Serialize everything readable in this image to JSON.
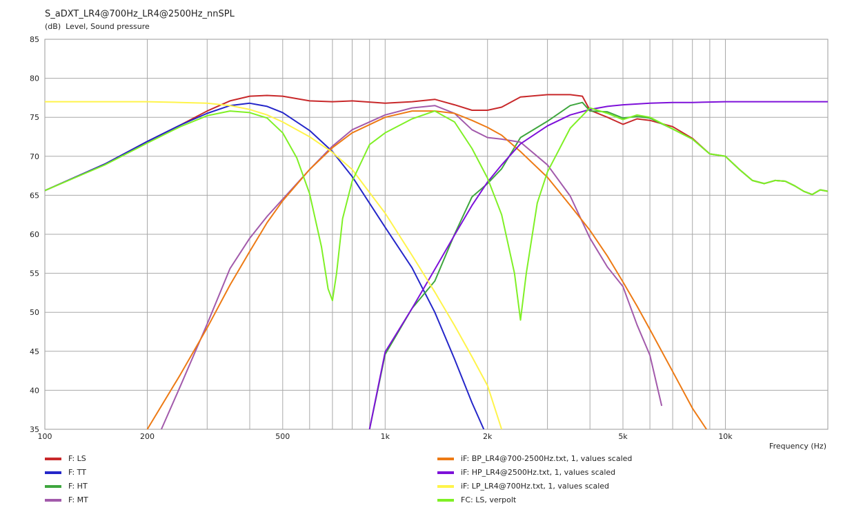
{
  "chart_data": {
    "type": "line",
    "title": "S_aDXT_LR4@700Hz_LR4@2500Hz_nnSPL",
    "ylabel_unit": "(dB)",
    "ylabel": "Level, Sound pressure",
    "xlabel": "Frequency  (Hz)",
    "x_scale": "log",
    "xlim": [
      100,
      20000
    ],
    "ylim": [
      35,
      85
    ],
    "grid": true,
    "legend_position": "bottom",
    "x_ticks": [
      {
        "value": 100,
        "label": "100"
      },
      {
        "value": 200,
        "label": "200"
      },
      {
        "value": 500,
        "label": "500"
      },
      {
        "value": 1000,
        "label": "1k"
      },
      {
        "value": 2000,
        "label": "2k"
      },
      {
        "value": 5000,
        "label": "5k"
      },
      {
        "value": 10000,
        "label": "10k"
      }
    ],
    "y_ticks": [
      35,
      40,
      45,
      50,
      55,
      60,
      65,
      70,
      75,
      80,
      85
    ],
    "series": [
      {
        "name": "F: LS",
        "color": "#c8282a",
        "x": [
          100,
          150,
          200,
          250,
          300,
          350,
          400,
          450,
          500,
          600,
          700,
          800,
          1000,
          1200,
          1400,
          1600,
          1800,
          2000,
          2200,
          2500,
          3000,
          3500,
          3800,
          4000,
          4500,
          5000,
          5500,
          6000,
          7000,
          8000,
          9000,
          10000,
          11000,
          12000,
          13000,
          14000,
          15000,
          16000,
          17000,
          18000,
          19000,
          20000
        ],
        "y": [
          65.6,
          69.0,
          71.9,
          74.0,
          75.8,
          77.1,
          77.7,
          77.8,
          77.7,
          77.1,
          77.0,
          77.1,
          76.8,
          77.0,
          77.3,
          76.6,
          75.9,
          75.9,
          76.3,
          77.6,
          77.9,
          77.9,
          77.7,
          75.9,
          75.0,
          74.1,
          74.8,
          74.6,
          73.8,
          72.3,
          70.3,
          70.0,
          68.3,
          66.9,
          66.5,
          66.9,
          66.8,
          66.2,
          65.5,
          65.1,
          65.7,
          65.5
        ]
      },
      {
        "name": "F: TT",
        "color": "#2426c9",
        "x": [
          100,
          150,
          200,
          250,
          300,
          350,
          400,
          450,
          500,
          600,
          700,
          800,
          1000,
          1200,
          1400,
          1600,
          1800,
          1950
        ],
        "y": [
          65.6,
          69.0,
          71.9,
          74.0,
          75.5,
          76.5,
          76.8,
          76.4,
          75.6,
          73.3,
          70.6,
          67.4,
          60.9,
          55.7,
          50.0,
          44.0,
          38.4,
          35.0
        ]
      },
      {
        "name": "F: HT",
        "color": "#3ea63e",
        "x": [
          900,
          1000,
          1200,
          1400,
          1600,
          1800,
          2000,
          2200,
          2500,
          3000,
          3500,
          3800,
          4000,
          4500,
          5000,
          5500,
          6000,
          7000,
          8000,
          9000,
          10000,
          11000,
          12000,
          13000,
          14000,
          15000,
          16000,
          17000,
          18000,
          19000,
          20000
        ],
        "y": [
          35.0,
          44.6,
          50.5,
          54.0,
          60.0,
          64.8,
          66.5,
          68.4,
          72.4,
          74.5,
          76.5,
          76.9,
          75.8,
          75.7,
          74.9,
          75.1,
          74.9,
          73.5,
          72.2,
          70.3,
          70.0,
          68.3,
          66.9,
          66.5,
          66.9,
          66.8,
          66.2,
          65.5,
          65.1,
          65.7,
          65.5
        ]
      },
      {
        "name": "F: MT",
        "color": "#a25aab",
        "x": [
          220,
          250,
          300,
          350,
          400,
          450,
          500,
          600,
          700,
          800,
          1000,
          1200,
          1400,
          1600,
          1800,
          2000,
          2200,
          2500,
          3000,
          3500,
          4000,
          4500,
          5000,
          5500,
          6000,
          6500
        ],
        "y": [
          35.0,
          40.5,
          48.5,
          55.6,
          59.5,
          62.3,
          64.5,
          68.3,
          71.3,
          73.4,
          75.3,
          76.2,
          76.5,
          75.5,
          73.4,
          72.4,
          72.2,
          71.8,
          68.9,
          64.9,
          59.5,
          55.8,
          53.3,
          48.4,
          44.5,
          38.0
        ]
      },
      {
        "name": "iF: BP_LR4@700-2500Hz.txt, 1, values scaled",
        "color": "#ed7a14",
        "x": [
          200,
          250,
          300,
          350,
          400,
          450,
          500,
          600,
          700,
          800,
          1000,
          1200,
          1400,
          1600,
          1800,
          2000,
          2200,
          2500,
          3000,
          3500,
          4000,
          4500,
          5000,
          5500,
          6000,
          7000,
          8000,
          8800
        ],
        "y": [
          35.0,
          42.0,
          48.0,
          53.5,
          57.8,
          61.5,
          64.3,
          68.3,
          71.1,
          73.0,
          75.0,
          75.8,
          75.8,
          75.5,
          74.6,
          73.7,
          72.7,
          70.6,
          67.3,
          63.7,
          60.5,
          57.2,
          53.9,
          50.8,
          47.8,
          42.4,
          37.7,
          35.0
        ]
      },
      {
        "name": "iF: HP_LR4@2500Hz.txt, 1, values scaled",
        "color": "#7d10d9",
        "x": [
          900,
          1000,
          1200,
          1400,
          1600,
          1800,
          2000,
          2200,
          2500,
          3000,
          3500,
          4000,
          4500,
          5000,
          6000,
          7000,
          8000,
          10000,
          12000,
          15000,
          20000
        ],
        "y": [
          35.0,
          44.9,
          50.5,
          55.5,
          59.9,
          63.7,
          66.7,
          68.9,
          71.6,
          73.9,
          75.3,
          76.0,
          76.4,
          76.6,
          76.8,
          76.9,
          76.9,
          77.0,
          77.0,
          77.0,
          77.0
        ]
      },
      {
        "name": "iF: LP_LR4@700Hz.txt, 1, values scaled",
        "color": "#fff44a",
        "x": [
          100,
          150,
          200,
          250,
          300,
          350,
          400,
          450,
          500,
          600,
          700,
          800,
          1000,
          1200,
          1400,
          1600,
          1800,
          2000,
          2200
        ],
        "y": [
          77.0,
          77.0,
          77.0,
          76.9,
          76.8,
          76.5,
          76.0,
          75.3,
          74.4,
          72.5,
          70.5,
          68.3,
          62.7,
          57.3,
          52.6,
          48.3,
          44.3,
          40.6,
          35.0
        ]
      },
      {
        "name": "FC: LS, verpolt",
        "color": "#7ff025",
        "x": [
          100,
          150,
          200,
          250,
          300,
          350,
          400,
          450,
          500,
          550,
          600,
          650,
          680,
          700,
          720,
          750,
          800,
          900,
          1000,
          1200,
          1400,
          1600,
          1800,
          2000,
          2200,
          2400,
          2500,
          2600,
          2800,
          3000,
          3500,
          4000,
          4500,
          5000,
          5500,
          6000,
          7000,
          8000,
          9000,
          10000,
          11000,
          12000,
          13000,
          14000,
          15000,
          16000,
          17000,
          18000,
          19000,
          20000
        ],
        "y": [
          65.6,
          68.9,
          71.7,
          73.8,
          75.2,
          75.8,
          75.6,
          74.9,
          73.0,
          69.8,
          65.2,
          58.4,
          53.0,
          51.5,
          55.0,
          62.0,
          66.8,
          71.5,
          73.0,
          74.8,
          75.8,
          74.4,
          71.0,
          67.2,
          62.5,
          55.0,
          49.0,
          55.0,
          64.0,
          68.0,
          73.6,
          76.2,
          75.5,
          74.7,
          75.3,
          75.0,
          73.5,
          72.2,
          70.3,
          70.0,
          68.3,
          66.9,
          66.5,
          66.9,
          66.8,
          66.2,
          65.5,
          65.1,
          65.7,
          65.5
        ]
      }
    ]
  }
}
